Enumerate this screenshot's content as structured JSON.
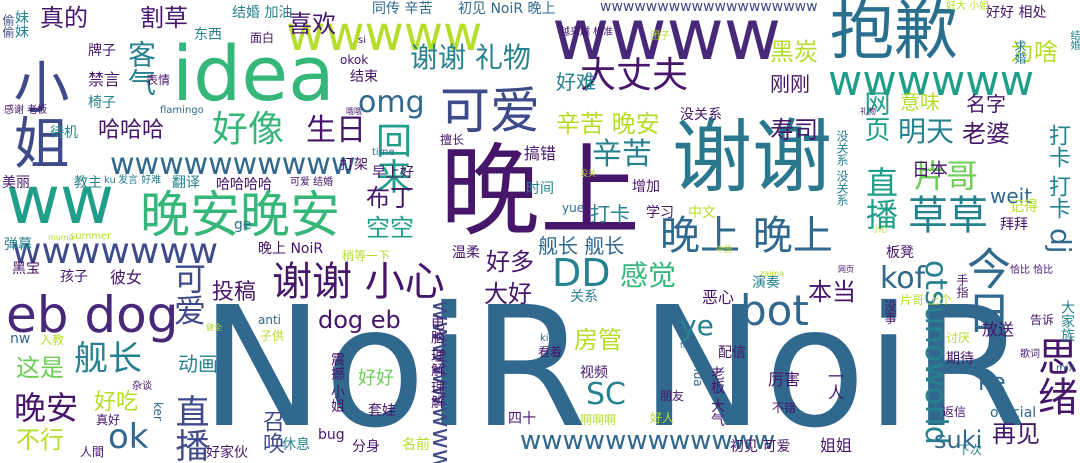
{
  "palette": {
    "indigo": "#46166b",
    "purple": "#482878",
    "violet": "#3e4a89",
    "steel": "#31688e",
    "teal": "#26828e",
    "sea": "#1f9e89",
    "green": "#35b779",
    "lime": "#6ece58",
    "yellow": "#b5de2b",
    "gold": "#d8e219"
  },
  "words": [
    {
      "text": "NoiR NoiR"
    },
    {
      "text": "晚上"
    },
    {
      "text": "谢谢"
    },
    {
      "text": "idea"
    },
    {
      "text": "wwww"
    },
    {
      "text": "抱歉"
    },
    {
      "text": "小姐"
    },
    {
      "text": "ww"
    },
    {
      "text": "晚安晚安"
    },
    {
      "text": "eb dog"
    },
    {
      "text": "wwwww"
    },
    {
      "text": "wwwwww"
    },
    {
      "text": "可爱"
    },
    {
      "text": "晚上 晚上"
    },
    {
      "text": "草草"
    },
    {
      "text": "bot"
    },
    {
      "text": "今日"
    },
    {
      "text": "DD"
    },
    {
      "text": "谢谢 小心"
    },
    {
      "text": "wwwwwww"
    },
    {
      "text": "wwwwwwww"
    },
    {
      "text": "wwwwwwwwww"
    },
    {
      "text": "wwwwwwwwwwww"
    },
    {
      "text": "好像"
    },
    {
      "text": "生日"
    },
    {
      "text": "大丈夫"
    },
    {
      "text": "喜欢"
    },
    {
      "text": "谢谢 礼物"
    },
    {
      "text": "omg"
    },
    {
      "text": "回来"
    },
    {
      "text": "直播"
    },
    {
      "text": "片哥"
    },
    {
      "text": "舰长"
    },
    {
      "text": "晚安"
    },
    {
      "text": "ok"
    },
    {
      "text": "可爱"
    },
    {
      "text": "SC"
    },
    {
      "text": "otsunoworld"
    },
    {
      "text": "思绪"
    },
    {
      "text": "kof"
    },
    {
      "text": "直播"
    },
    {
      "text": "感觉"
    },
    {
      "text": "dog eb"
    },
    {
      "text": "房管"
    },
    {
      "text": "再见"
    },
    {
      "text": "suki"
    },
    {
      "text": "ye"
    },
    {
      "text": "ke"
    },
    {
      "text": "辛苦"
    },
    {
      "text": "辛苦 晚安"
    },
    {
      "text": "寿司"
    },
    {
      "text": "明天"
    },
    {
      "text": "老婆"
    },
    {
      "text": "dj"
    },
    {
      "text": "打卡 打卡"
    },
    {
      "text": "为啥"
    },
    {
      "text": "黑炭"
    },
    {
      "text": "刚刚"
    },
    {
      "text": "意味"
    },
    {
      "text": "名字"
    },
    {
      "text": "日本"
    },
    {
      "text": "网页"
    },
    {
      "text": "weit"
    },
    {
      "text": "打卡"
    },
    {
      "text": "空空"
    },
    {
      "text": "布丁"
    },
    {
      "text": "好多"
    },
    {
      "text": "大好"
    },
    {
      "text": "本当"
    },
    {
      "text": "投稿"
    },
    {
      "text": "哈哈哈"
    },
    {
      "text": "客气"
    },
    {
      "text": "割草"
    },
    {
      "text": "真的"
    },
    {
      "text": "这是"
    },
    {
      "text": "不行"
    },
    {
      "text": "好吃"
    },
    {
      "text": "召唤"
    },
    {
      "text": "动画"
    },
    {
      "text": "舰长 舰长"
    },
    {
      "text": "好难"
    },
    {
      "text": "搞错"
    },
    {
      "text": "同传 辛苦"
    },
    {
      "text": "初见 NoiR 晚上"
    },
    {
      "text": "wwwwwwwwwwwwwwwwwww"
    },
    {
      "text": "好好 相处"
    },
    {
      "text": "求婚"
    },
    {
      "text": "结婚 加油"
    },
    {
      "text": "妹妹"
    },
    {
      "text": "偷偷"
    },
    {
      "text": "牌子"
    },
    {
      "text": "禁言"
    },
    {
      "text": "椅子"
    },
    {
      "text": "表情"
    },
    {
      "text": "东西"
    },
    {
      "text": "面白"
    },
    {
      "text": "okok"
    },
    {
      "text": "结束"
    },
    {
      "text": "没关系"
    },
    {
      "text": "增加"
    },
    {
      "text": "学习"
    },
    {
      "text": "中文"
    },
    {
      "text": "时间"
    },
    {
      "text": "早上好"
    },
    {
      "text": "打架"
    },
    {
      "text": "擅长"
    },
    {
      "text": "翻译"
    },
    {
      "text": "哈哈哈哈"
    },
    {
      "text": "美丽"
    },
    {
      "text": "教主"
    },
    {
      "text": "待机"
    },
    {
      "text": "弹幕"
    },
    {
      "text": "黑宝"
    },
    {
      "text": "孩子"
    },
    {
      "text": "彼女"
    },
    {
      "text": "晚上 NoiR"
    },
    {
      "text": "温柔"
    },
    {
      "text": "关系"
    },
    {
      "text": "恶心"
    },
    {
      "text": "演奏"
    },
    {
      "text": "板凳"
    },
    {
      "text": "拜拜"
    },
    {
      "text": "记得"
    },
    {
      "text": "手指"
    },
    {
      "text": "大家族"
    },
    {
      "text": "告诉"
    },
    {
      "text": "放送"
    },
    {
      "text": "片哥 上个"
    },
    {
      "text": "期待"
    },
    {
      "text": "讨厌"
    },
    {
      "text": "没事"
    },
    {
      "text": "返信"
    },
    {
      "text": "official"
    },
    {
      "text": "下次"
    },
    {
      "text": "一人"
    },
    {
      "text": "厉害"
    },
    {
      "text": "不错"
    },
    {
      "text": "配信"
    },
    {
      "text": "朋友"
    },
    {
      "text": "老板 大气"
    },
    {
      "text": "好人"
    },
    {
      "text": "初见 可爱"
    },
    {
      "text": "姐姐"
    },
    {
      "text": "视频"
    },
    {
      "text": "看着"
    },
    {
      "text": "四十"
    },
    {
      "text": "啊啊啊"
    },
    {
      "text": "套娃"
    },
    {
      "text": "分身"
    },
    {
      "text": "名前"
    },
    {
      "text": "好家伙"
    },
    {
      "text": "休息"
    },
    {
      "text": "bug"
    },
    {
      "text": "电脑 理解 理解"
    },
    {
      "text": "震撼 小姐"
    },
    {
      "text": "好好"
    },
    {
      "text": "真好"
    },
    {
      "text": "入教"
    },
    {
      "text": "子供"
    },
    {
      "text": "anti"
    },
    {
      "text": "nw"
    },
    {
      "text": "ker"
    },
    {
      "text": "mua"
    },
    {
      "text": "kii"
    },
    {
      "text": "mix"
    },
    {
      "text": "歌词"
    },
    {
      "text": "稍等一下"
    },
    {
      "text": "ge"
    },
    {
      "text": "yue"
    },
    {
      "text": "time"
    },
    {
      "text": "flamingo"
    },
    {
      "text": "结婚"
    },
    {
      "text": "越来越 标准"
    },
    {
      "text": "好大 小姐"
    },
    {
      "text": "感谢 老板"
    },
    {
      "text": "si"
    },
    {
      "text": "团子"
    },
    {
      "text": "发言 好难"
    },
    {
      "text": "ku"
    },
    {
      "text": "可爱 结婚"
    },
    {
      "text": "summer"
    },
    {
      "text": "人間"
    },
    {
      "text": "杂谈"
    },
    {
      "text": "zaima"
    },
    {
      "text": "网页"
    },
    {
      "text": "恰比 恰比"
    },
    {
      "text": "没关系 没关系"
    },
    {
      "text": "中国"
    },
    {
      "text": "小心"
    },
    {
      "text": "fla"
    },
    {
      "text": "健全"
    },
    {
      "text": "礼物"
    },
    {
      "text": "哦哦"
    },
    {
      "text": "没关"
    },
    {
      "text": "mumu"
    }
  ]
}
